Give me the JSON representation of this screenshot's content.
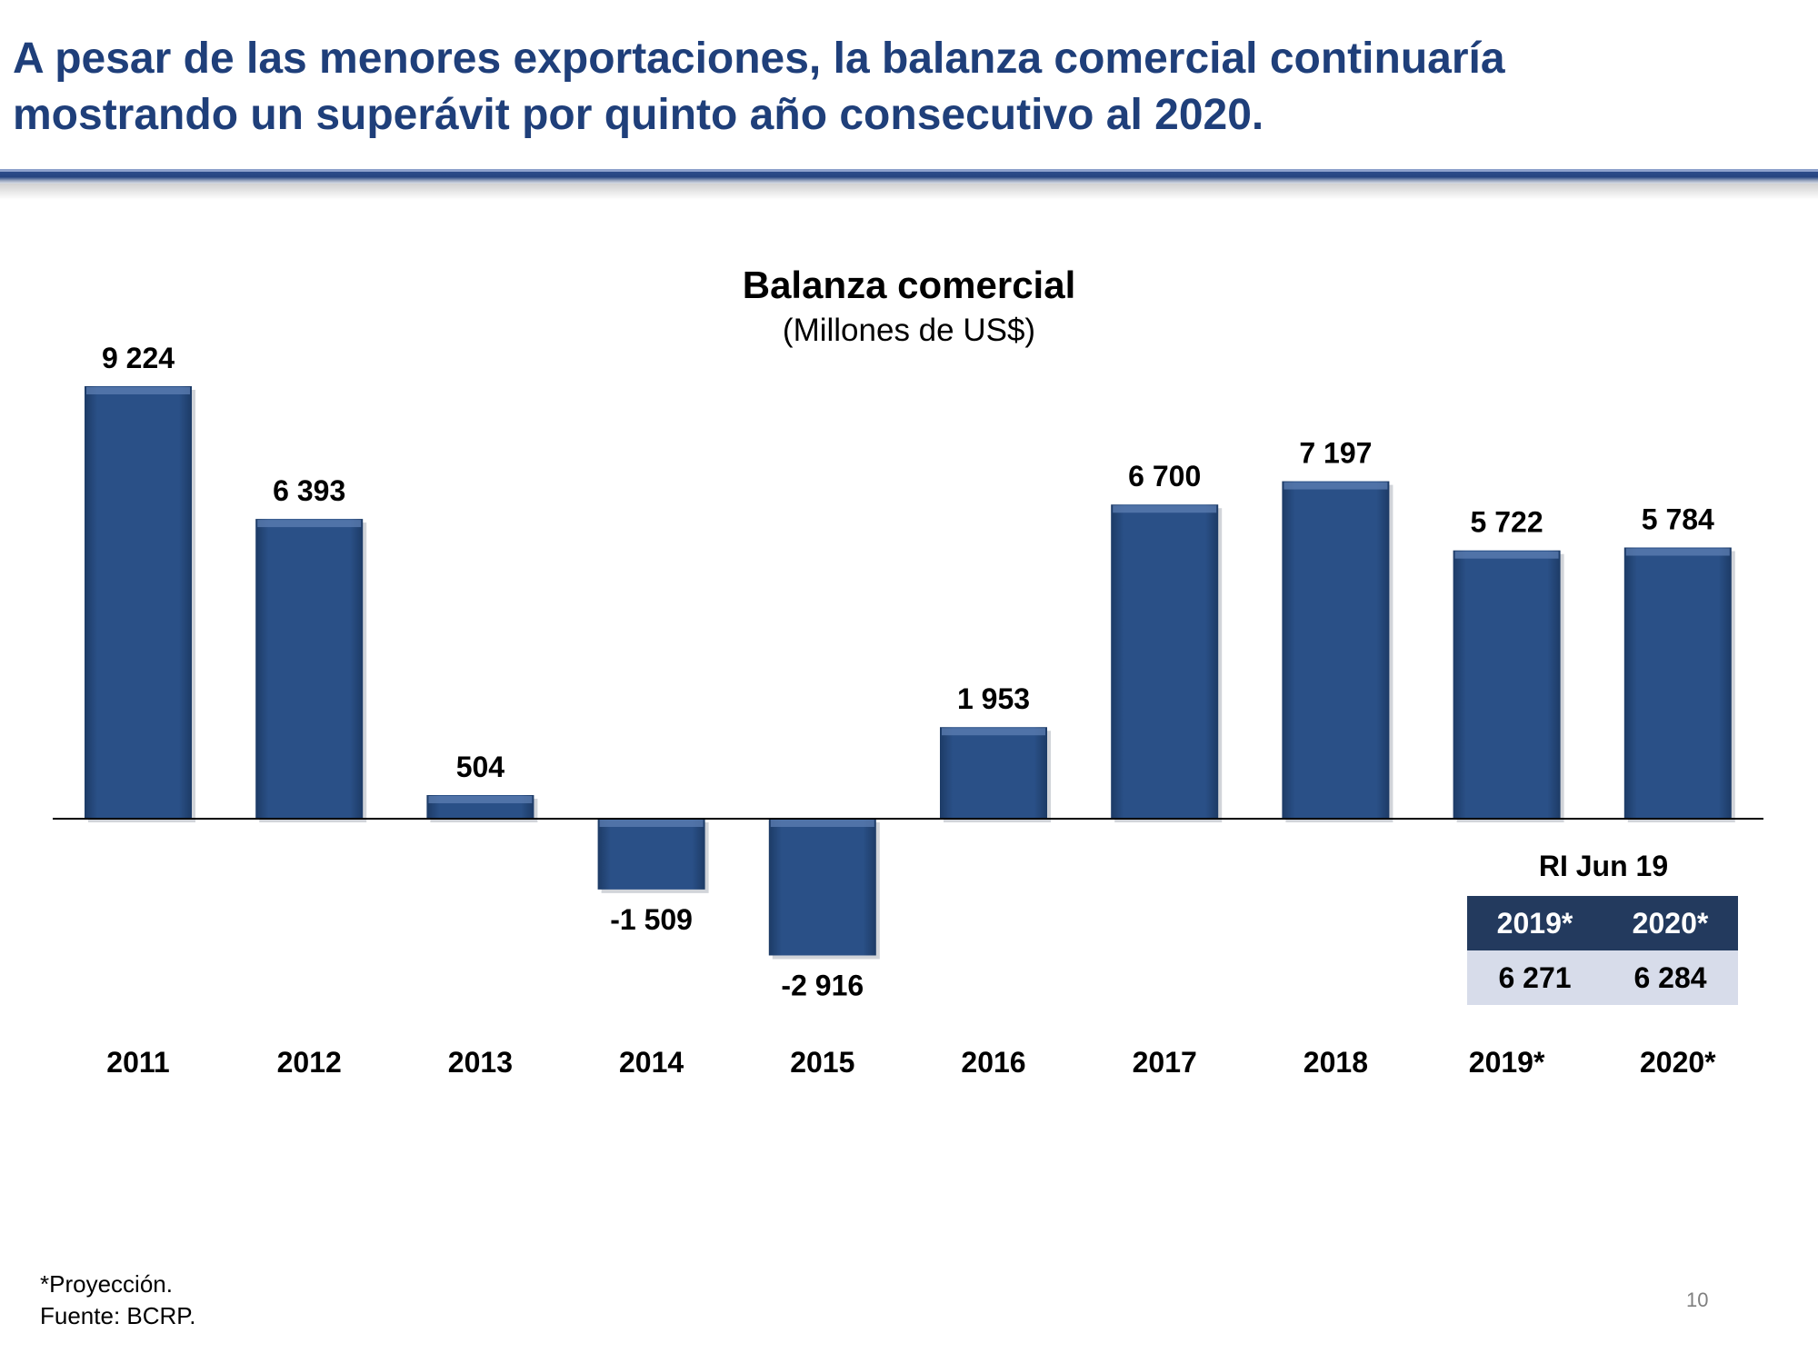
{
  "headline": {
    "line1": "A pesar de las menores exportaciones, la balanza comercial continuaría",
    "line2": "mostrando un superávit por quinto año consecutivo al 2020."
  },
  "colors": {
    "bar": "#274c80",
    "headline": "#1f3f7a",
    "table_header": "#233a5e",
    "table_body": "#d7dcea"
  },
  "chart_data": {
    "type": "bar",
    "title": "Balanza comercial",
    "subtitle": "(Millones de US$)",
    "categories": [
      "2011",
      "2012",
      "2013",
      "2014",
      "2015",
      "2016",
      "2017",
      "2018",
      "2019*",
      "2020*"
    ],
    "values": [
      9224,
      6393,
      504,
      -1509,
      -2916,
      1953,
      6700,
      7197,
      5722,
      5784
    ],
    "value_labels": [
      "9 224",
      "6 393",
      "504",
      "-1 509",
      "-2 916",
      "1 953",
      "6 700",
      "7 197",
      "5 722",
      "5 784"
    ],
    "xlabel": "",
    "ylabel": "",
    "grid": false,
    "legend": "none"
  },
  "ri_table": {
    "title": "RI Jun 19",
    "headers": [
      "2019*",
      "2020*"
    ],
    "values": [
      "6 271",
      "6 284"
    ]
  },
  "footnote": {
    "line1": "*Proyección.",
    "line2": "Fuente: BCRP."
  },
  "page_number": "10"
}
